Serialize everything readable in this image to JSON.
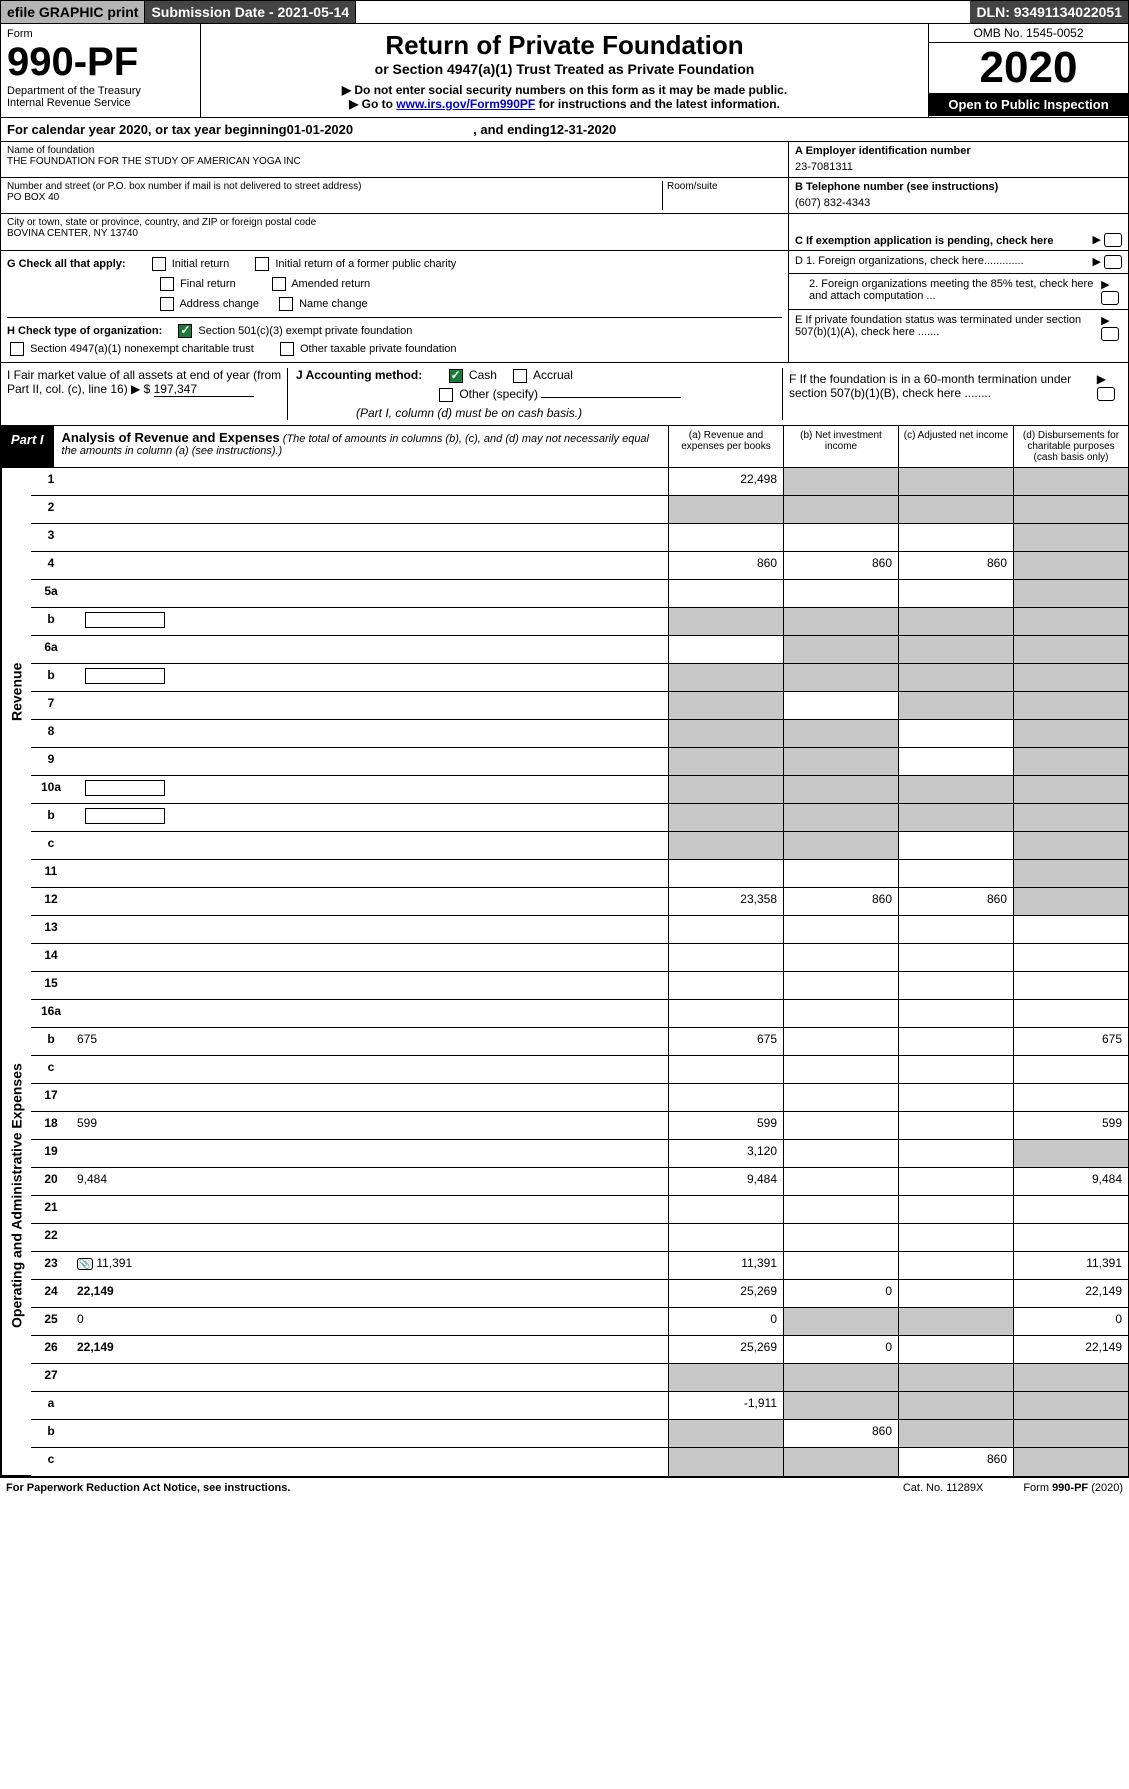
{
  "topbar": {
    "efile": "efile GRAPHIC print",
    "submission": "Submission Date - 2021-05-14",
    "dln": "DLN: 93491134022051"
  },
  "header": {
    "form_word": "Form",
    "form_no": "990-PF",
    "dept": "Department of the Treasury",
    "irs": "Internal Revenue Service",
    "title": "Return of Private Foundation",
    "subtitle": "or Section 4947(a)(1) Trust Treated as Private Foundation",
    "inst1": "▶ Do not enter social security numbers on this form as it may be made public.",
    "inst2_pre": "▶ Go to ",
    "inst2_link": "www.irs.gov/Form990PF",
    "inst2_post": " for instructions and the latest information.",
    "omb": "OMB No. 1545-0052",
    "year": "2020",
    "otp": "Open to Public Inspection"
  },
  "cal": {
    "pre": "For calendar year 2020, or tax year beginning ",
    "begin": "01-01-2020",
    "mid": ", and ending ",
    "end": "12-31-2020"
  },
  "entity": {
    "name_label": "Name of foundation",
    "name": "THE FOUNDATION FOR THE STUDY OF AMERICAN YOGA INC",
    "addr_label": "Number and street (or P.O. box number if mail is not delivered to street address)",
    "addr": "PO BOX 40",
    "room_label": "Room/suite",
    "city_label": "City or town, state or province, country, and ZIP or foreign postal code",
    "city": "BOVINA CENTER, NY  13740",
    "ein_label": "A Employer identification number",
    "ein": "23-7081311",
    "phone_label": "B  Telephone number (see instructions)",
    "phone": "(607) 832-4343",
    "c_label": "C  If exemption application is pending, check here"
  },
  "g": {
    "label": "G Check all that apply:",
    "initial": "Initial return",
    "initial_former": "Initial return of a former public charity",
    "final": "Final return",
    "amended": "Amended return",
    "addr_change": "Address change",
    "name_change": "Name change"
  },
  "h": {
    "label": "H Check type of organization:",
    "s501": "Section 501(c)(3) exempt private foundation",
    "s4947": "Section 4947(a)(1) nonexempt charitable trust",
    "other_tax": "Other taxable private foundation"
  },
  "d": {
    "d1": "D 1. Foreign organizations, check here.............",
    "d2": "2. Foreign organizations meeting the 85% test, check here and attach computation ...",
    "e": "E  If private foundation status was terminated under section 507(b)(1)(A), check here .......",
    "f": "F  If the foundation is in a 60-month termination under section 507(b)(1)(B), check here ........"
  },
  "i": {
    "label": "I Fair market value of all assets at end of year (from Part II, col. (c), line 16) ▶ $",
    "value": "197,347"
  },
  "j": {
    "label": "J Accounting method:",
    "cash": "Cash",
    "accrual": "Accrual",
    "other": "Other (specify)",
    "note": "(Part I, column (d) must be on cash basis.)"
  },
  "part1": {
    "tag": "Part I",
    "title": "Analysis of Revenue and Expenses",
    "title_note": " (The total of amounts in columns (b), (c), and (d) may not necessarily equal the amounts in column (a) (see instructions).)",
    "cols": {
      "a": "(a)  Revenue and expenses per books",
      "b": "(b)  Net investment income",
      "c": "(c)  Adjusted net income",
      "d": "(d)  Disbursements for charitable purposes (cash basis only)"
    }
  },
  "revenue_label": "Revenue",
  "expense_label": "Operating and Administrative Expenses",
  "rows": [
    {
      "n": "1",
      "d": "",
      "a": "22,498",
      "b": "",
      "c": "",
      "sb": true,
      "sc": true,
      "sd": true
    },
    {
      "n": "2",
      "d": "",
      "dots": true,
      "a": "",
      "b": "",
      "c": "",
      "sa": true,
      "sb": true,
      "sc": true,
      "sd": true
    },
    {
      "n": "3",
      "d": "",
      "a": "",
      "b": "",
      "c": "",
      "sd": true
    },
    {
      "n": "4",
      "d": "",
      "a": "860",
      "b": "860",
      "c": "860",
      "sd": true
    },
    {
      "n": "5a",
      "d": "",
      "a": "",
      "b": "",
      "c": "",
      "sd": true
    },
    {
      "n": "b",
      "d": "",
      "input": true,
      "a": "",
      "b": "",
      "c": "",
      "sa": true,
      "sb": true,
      "sc": true,
      "sd": true
    },
    {
      "n": "6a",
      "d": "",
      "a": "",
      "b": "",
      "c": "",
      "sb": true,
      "sc": true,
      "sd": true
    },
    {
      "n": "b",
      "d": "",
      "input": true,
      "a": "",
      "b": "",
      "c": "",
      "sa": true,
      "sb": true,
      "sc": true,
      "sd": true
    },
    {
      "n": "7",
      "d": "",
      "a": "",
      "b": "",
      "c": "",
      "sa": true,
      "sc": true,
      "sd": true
    },
    {
      "n": "8",
      "d": "",
      "a": "",
      "b": "",
      "c": "",
      "sa": true,
      "sb": true,
      "sd": true
    },
    {
      "n": "9",
      "d": "",
      "a": "",
      "b": "",
      "c": "",
      "sa": true,
      "sb": true,
      "sd": true
    },
    {
      "n": "10a",
      "d": "",
      "input": true,
      "a": "",
      "b": "",
      "c": "",
      "sa": true,
      "sb": true,
      "sc": true,
      "sd": true
    },
    {
      "n": "b",
      "d": "",
      "input": true,
      "a": "",
      "b": "",
      "c": "",
      "sa": true,
      "sb": true,
      "sc": true,
      "sd": true
    },
    {
      "n": "c",
      "d": "",
      "a": "",
      "b": "",
      "c": "",
      "sa": true,
      "sb": true,
      "sd": true
    },
    {
      "n": "11",
      "d": "",
      "a": "",
      "b": "",
      "c": "",
      "sd": true
    },
    {
      "n": "12",
      "d": "",
      "bold": true,
      "a": "23,358",
      "b": "860",
      "c": "860",
      "sd": true
    }
  ],
  "exp_rows": [
    {
      "n": "13",
      "d": "",
      "a": "",
      "b": "",
      "c": ""
    },
    {
      "n": "14",
      "d": "",
      "a": "",
      "b": "",
      "c": ""
    },
    {
      "n": "15",
      "d": "",
      "a": "",
      "b": "",
      "c": ""
    },
    {
      "n": "16a",
      "d": "",
      "a": "",
      "b": "",
      "c": ""
    },
    {
      "n": "b",
      "d": "675",
      "a": "675",
      "b": "",
      "c": ""
    },
    {
      "n": "c",
      "d": "",
      "a": "",
      "b": "",
      "c": ""
    },
    {
      "n": "17",
      "d": "",
      "a": "",
      "b": "",
      "c": ""
    },
    {
      "n": "18",
      "d": "599",
      "a": "599",
      "b": "",
      "c": ""
    },
    {
      "n": "19",
      "d": "",
      "a": "3,120",
      "b": "",
      "c": "",
      "sd": true
    },
    {
      "n": "20",
      "d": "9,484",
      "a": "9,484",
      "b": "",
      "c": ""
    },
    {
      "n": "21",
      "d": "",
      "a": "",
      "b": "",
      "c": ""
    },
    {
      "n": "22",
      "d": "",
      "a": "",
      "b": "",
      "c": ""
    },
    {
      "n": "23",
      "d": "11,391",
      "att": true,
      "a": "11,391",
      "b": "",
      "c": ""
    },
    {
      "n": "24",
      "d": "22,149",
      "bold": true,
      "a": "25,269",
      "b": "0",
      "c": ""
    },
    {
      "n": "25",
      "d": "0",
      "a": "0",
      "b": "",
      "c": "",
      "sb": true,
      "sc": true
    },
    {
      "n": "26",
      "d": "22,149",
      "bold": true,
      "a": "25,269",
      "b": "0",
      "c": ""
    }
  ],
  "net_rows": [
    {
      "n": "27",
      "d": "",
      "a": "",
      "b": "",
      "c": "",
      "sa": true,
      "sb": true,
      "sc": true,
      "sd": true
    },
    {
      "n": "a",
      "d": "",
      "bold": true,
      "a": "-1,911",
      "b": "",
      "c": "",
      "sb": true,
      "sc": true,
      "sd": true
    },
    {
      "n": "b",
      "d": "",
      "bold": true,
      "a": "",
      "b": "860",
      "c": "",
      "sa": true,
      "sc": true,
      "sd": true
    },
    {
      "n": "c",
      "d": "",
      "bold": true,
      "a": "",
      "b": "",
      "c": "860",
      "sa": true,
      "sb": true,
      "sd": true
    }
  ],
  "footer": {
    "left": "For Paperwork Reduction Act Notice, see instructions.",
    "mid": "Cat. No. 11289X",
    "right": "Form 990-PF (2020)"
  }
}
